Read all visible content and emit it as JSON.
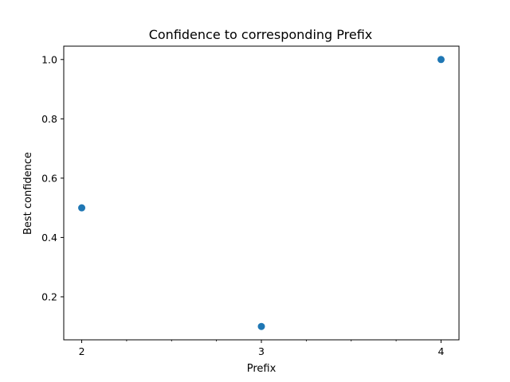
{
  "chart_data": {
    "type": "scatter",
    "title": "Confidence to corresponding Prefix",
    "xlabel": "Prefix",
    "ylabel": "Best confidence",
    "x": [
      2,
      3,
      4
    ],
    "y": [
      0.5,
      0.1,
      1.0
    ],
    "xlim": [
      1.9,
      4.1
    ],
    "ylim": [
      0.055,
      1.045
    ],
    "xticks": [
      2,
      3,
      4
    ],
    "xtick_labels": [
      "2",
      "3",
      "4"
    ],
    "xminor_ticks": [
      2.25,
      2.5,
      2.75,
      3.25,
      3.5,
      3.75
    ],
    "yticks": [
      0.2,
      0.4,
      0.6,
      0.8,
      1.0
    ],
    "ytick_labels": [
      "0.2",
      "0.4",
      "0.6",
      "0.8",
      "1.0"
    ],
    "marker_color": "#1f77b4",
    "grid": false,
    "legend": "none"
  }
}
